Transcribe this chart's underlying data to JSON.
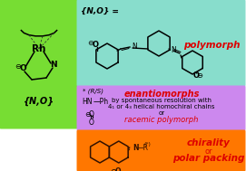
{
  "bg_color": "#ffffff",
  "left_panel_color": "#77dd33",
  "panel1_color": "#88ddcc",
  "panel2_color": "#cc88ee",
  "panel3_color": "#ff7700",
  "text_red": "#dd0000",
  "text_black": "#000000",
  "text_dark": "#222200",
  "panel1_label": "polymorph",
  "panel2_lines": [
    "enantiomorphs",
    "by spontaneous resolution with",
    "4₁ or 4₃ helical homochiral chains",
    "or",
    "racemic polymorph"
  ],
  "panel3_lines": [
    "chirality",
    "or",
    "polar packing"
  ],
  "left_label": "{N,O}",
  "top_label": "{N,O} =",
  "fig_width": 2.71,
  "fig_height": 1.89,
  "dpi": 100
}
